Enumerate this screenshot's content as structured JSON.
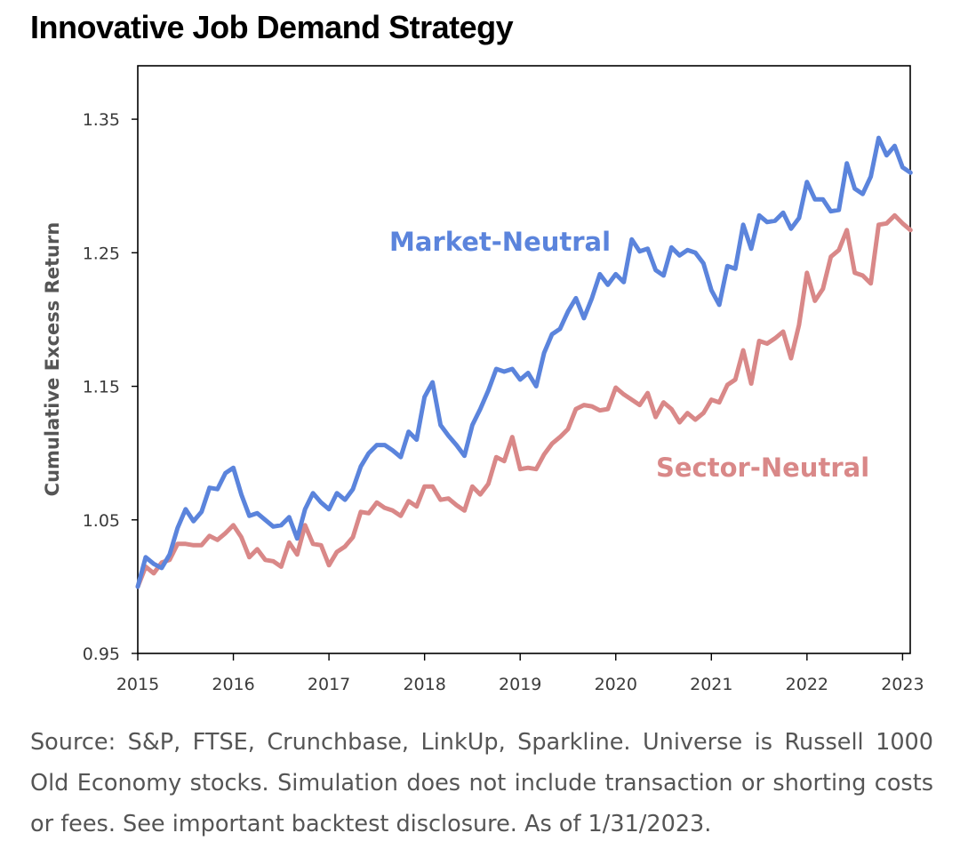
{
  "title": "Innovative Job Demand Strategy",
  "source_text": "Source: S&P, FTSE, Crunchbase, LinkUp, Sparkline. Universe is Russell 1000 Old Economy stocks. Simulation does not include transaction or shorting costs or fees. See important backtest disclosure. As of 1/31/2023.",
  "chart_data": {
    "type": "line",
    "title": "Innovative Job Demand Strategy",
    "xlabel": "",
    "ylabel": "Cumulative Excess Return",
    "xlim": [
      2015.0,
      2023.08
    ],
    "ylim": [
      0.95,
      1.39
    ],
    "yticks": [
      0.95,
      1.05,
      1.15,
      1.25,
      1.35
    ],
    "ytick_labels": [
      "0.95",
      "1.05",
      "1.15",
      "1.25",
      "1.35"
    ],
    "xticks": [
      2015,
      2016,
      2017,
      2018,
      2019,
      2020,
      2021,
      2022,
      2023
    ],
    "xtick_labels": [
      "2015",
      "2016",
      "2017",
      "2018",
      "2019",
      "2020",
      "2021",
      "2022",
      "2023"
    ],
    "grid": false,
    "colors": {
      "Market-Neutral": "#5b84dc",
      "Sector-Neutral": "#d98888"
    },
    "series": [
      {
        "name": "Market-Neutral",
        "color": "#5b84dc",
        "x": [
          2015.0,
          2015.083,
          2015.167,
          2015.25,
          2015.333,
          2015.417,
          2015.5,
          2015.583,
          2015.667,
          2015.75,
          2015.833,
          2015.917,
          2016.0,
          2016.083,
          2016.167,
          2016.25,
          2016.333,
          2016.417,
          2016.5,
          2016.583,
          2016.667,
          2016.75,
          2016.833,
          2016.917,
          2017.0,
          2017.083,
          2017.167,
          2017.25,
          2017.333,
          2017.417,
          2017.5,
          2017.583,
          2017.667,
          2017.75,
          2017.833,
          2017.917,
          2018.0,
          2018.083,
          2018.167,
          2018.25,
          2018.333,
          2018.417,
          2018.5,
          2018.583,
          2018.667,
          2018.75,
          2018.833,
          2018.917,
          2019.0,
          2019.083,
          2019.167,
          2019.25,
          2019.333,
          2019.417,
          2019.5,
          2019.583,
          2019.667,
          2019.75,
          2019.833,
          2019.917,
          2020.0,
          2020.083,
          2020.167,
          2020.25,
          2020.333,
          2020.417,
          2020.5,
          2020.583,
          2020.667,
          2020.75,
          2020.833,
          2020.917,
          2021.0,
          2021.083,
          2021.167,
          2021.25,
          2021.333,
          2021.417,
          2021.5,
          2021.583,
          2021.667,
          2021.75,
          2021.833,
          2021.917,
          2022.0,
          2022.083,
          2022.167,
          2022.25,
          2022.333,
          2022.417,
          2022.5,
          2022.583,
          2022.667,
          2022.75,
          2022.833,
          2022.917,
          2023.0,
          2023.083
        ],
        "values": [
          1.0,
          1.022,
          1.017,
          1.014,
          1.024,
          1.044,
          1.058,
          1.049,
          1.056,
          1.074,
          1.073,
          1.085,
          1.089,
          1.069,
          1.053,
          1.055,
          1.05,
          1.045,
          1.046,
          1.052,
          1.036,
          1.058,
          1.07,
          1.063,
          1.058,
          1.07,
          1.065,
          1.073,
          1.09,
          1.1,
          1.106,
          1.106,
          1.102,
          1.097,
          1.116,
          1.11,
          1.142,
          1.153,
          1.121,
          1.113,
          1.106,
          1.098,
          1.121,
          1.133,
          1.147,
          1.163,
          1.161,
          1.163,
          1.155,
          1.16,
          1.15,
          1.175,
          1.189,
          1.193,
          1.206,
          1.216,
          1.201,
          1.216,
          1.234,
          1.226,
          1.234,
          1.228,
          1.26,
          1.251,
          1.253,
          1.237,
          1.233,
          1.254,
          1.248,
          1.252,
          1.25,
          1.242,
          1.222,
          1.211,
          1.24,
          1.238,
          1.271,
          1.253,
          1.278,
          1.273,
          1.274,
          1.28,
          1.268,
          1.276,
          1.303,
          1.29,
          1.29,
          1.281,
          1.282,
          1.317,
          1.298,
          1.294,
          1.307,
          1.336,
          1.323,
          1.33,
          1.314,
          1.31
        ]
      },
      {
        "name": "Sector-Neutral",
        "color": "#d98888",
        "x": [
          2015.0,
          2015.083,
          2015.167,
          2015.25,
          2015.333,
          2015.417,
          2015.5,
          2015.583,
          2015.667,
          2015.75,
          2015.833,
          2015.917,
          2016.0,
          2016.083,
          2016.167,
          2016.25,
          2016.333,
          2016.417,
          2016.5,
          2016.583,
          2016.667,
          2016.75,
          2016.833,
          2016.917,
          2017.0,
          2017.083,
          2017.167,
          2017.25,
          2017.333,
          2017.417,
          2017.5,
          2017.583,
          2017.667,
          2017.75,
          2017.833,
          2017.917,
          2018.0,
          2018.083,
          2018.167,
          2018.25,
          2018.333,
          2018.417,
          2018.5,
          2018.583,
          2018.667,
          2018.75,
          2018.833,
          2018.917,
          2019.0,
          2019.083,
          2019.167,
          2019.25,
          2019.333,
          2019.417,
          2019.5,
          2019.583,
          2019.667,
          2019.75,
          2019.833,
          2019.917,
          2020.0,
          2020.083,
          2020.167,
          2020.25,
          2020.333,
          2020.417,
          2020.5,
          2020.583,
          2020.667,
          2020.75,
          2020.833,
          2020.917,
          2021.0,
          2021.083,
          2021.167,
          2021.25,
          2021.333,
          2021.417,
          2021.5,
          2021.583,
          2021.667,
          2021.75,
          2021.833,
          2021.917,
          2022.0,
          2022.083,
          2022.167,
          2022.25,
          2022.333,
          2022.417,
          2022.5,
          2022.583,
          2022.667,
          2022.75,
          2022.833,
          2022.917,
          2023.0,
          2023.083
        ],
        "values": [
          1.0,
          1.015,
          1.01,
          1.018,
          1.02,
          1.032,
          1.032,
          1.031,
          1.031,
          1.038,
          1.035,
          1.04,
          1.046,
          1.037,
          1.022,
          1.028,
          1.02,
          1.019,
          1.015,
          1.033,
          1.024,
          1.046,
          1.032,
          1.031,
          1.016,
          1.026,
          1.03,
          1.037,
          1.056,
          1.055,
          1.063,
          1.059,
          1.057,
          1.053,
          1.064,
          1.06,
          1.075,
          1.075,
          1.065,
          1.066,
          1.061,
          1.057,
          1.075,
          1.069,
          1.077,
          1.097,
          1.094,
          1.112,
          1.088,
          1.089,
          1.088,
          1.099,
          1.107,
          1.112,
          1.118,
          1.133,
          1.136,
          1.135,
          1.132,
          1.133,
          1.149,
          1.144,
          1.14,
          1.136,
          1.145,
          1.127,
          1.138,
          1.133,
          1.123,
          1.13,
          1.125,
          1.13,
          1.14,
          1.138,
          1.151,
          1.155,
          1.177,
          1.152,
          1.184,
          1.182,
          1.186,
          1.191,
          1.171,
          1.196,
          1.235,
          1.214,
          1.223,
          1.247,
          1.252,
          1.267,
          1.235,
          1.233,
          1.227,
          1.271,
          1.272,
          1.278,
          1.272,
          1.267
        ]
      }
    ],
    "annotations": [
      {
        "text": "Market-Neutral",
        "series": "Market-Neutral"
      },
      {
        "text": "Sector-Neutral",
        "series": "Sector-Neutral"
      }
    ]
  }
}
